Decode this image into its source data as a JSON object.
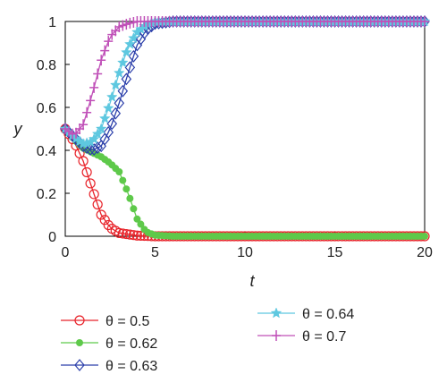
{
  "chart_data": {
    "type": "line",
    "xlabel": "t",
    "ylabel": "y",
    "xlim": [
      0,
      20
    ],
    "ylim": [
      0,
      1
    ],
    "x_ticks": [
      "0",
      "5",
      "10",
      "15",
      "20"
    ],
    "y_ticks": [
      "0",
      "0.2",
      "0.4",
      "0.6",
      "0.8",
      "1"
    ],
    "grid": false,
    "legend_position": "bottom",
    "series": [
      {
        "name": "θ = 0.5",
        "color": "#e8232a",
        "marker": "circle",
        "points": [
          [
            0,
            0.5
          ],
          [
            0.5,
            0.44
          ],
          [
            1,
            0.35
          ],
          [
            1.5,
            0.22
          ],
          [
            2,
            0.1
          ],
          [
            2.5,
            0.04
          ],
          [
            3,
            0.015
          ],
          [
            4,
            0.003
          ],
          [
            5,
            0
          ],
          [
            20,
            0
          ]
        ]
      },
      {
        "name": "θ = 0.62",
        "color": "#5ec94a",
        "marker": "dot",
        "points": [
          [
            0,
            0.5
          ],
          [
            0.5,
            0.45
          ],
          [
            1,
            0.41
          ],
          [
            1.5,
            0.39
          ],
          [
            2,
            0.37
          ],
          [
            2.5,
            0.34
          ],
          [
            3,
            0.3
          ],
          [
            3.5,
            0.2
          ],
          [
            4,
            0.08
          ],
          [
            4.5,
            0.02
          ],
          [
            5,
            0.005
          ],
          [
            6,
            0
          ],
          [
            20,
            0
          ]
        ]
      },
      {
        "name": "θ = 0.63",
        "color": "#2b3faa",
        "marker": "diamond",
        "points": [
          [
            0,
            0.5
          ],
          [
            0.5,
            0.46
          ],
          [
            1,
            0.42
          ],
          [
            1.5,
            0.4
          ],
          [
            2,
            0.42
          ],
          [
            2.5,
            0.5
          ],
          [
            3,
            0.62
          ],
          [
            3.5,
            0.76
          ],
          [
            4,
            0.89
          ],
          [
            4.5,
            0.96
          ],
          [
            5,
            0.99
          ],
          [
            6,
            1
          ],
          [
            20,
            1
          ]
        ]
      },
      {
        "name": "θ = 0.64",
        "color": "#5ec8e0",
        "marker": "star",
        "points": [
          [
            0,
            0.5
          ],
          [
            0.5,
            0.46
          ],
          [
            1,
            0.43
          ],
          [
            1.5,
            0.44
          ],
          [
            2,
            0.5
          ],
          [
            2.5,
            0.62
          ],
          [
            3,
            0.76
          ],
          [
            3.5,
            0.88
          ],
          [
            4,
            0.95
          ],
          [
            4.5,
            0.985
          ],
          [
            5,
            1
          ],
          [
            20,
            1
          ]
        ]
      },
      {
        "name": "θ = 0.7",
        "color": "#c050b8",
        "marker": "plus",
        "points": [
          [
            0,
            0.5
          ],
          [
            0.5,
            0.47
          ],
          [
            1,
            0.52
          ],
          [
            1.5,
            0.66
          ],
          [
            2,
            0.82
          ],
          [
            2.5,
            0.93
          ],
          [
            3,
            0.975
          ],
          [
            3.5,
            0.99
          ],
          [
            4,
            1
          ],
          [
            20,
            1
          ]
        ]
      }
    ]
  }
}
